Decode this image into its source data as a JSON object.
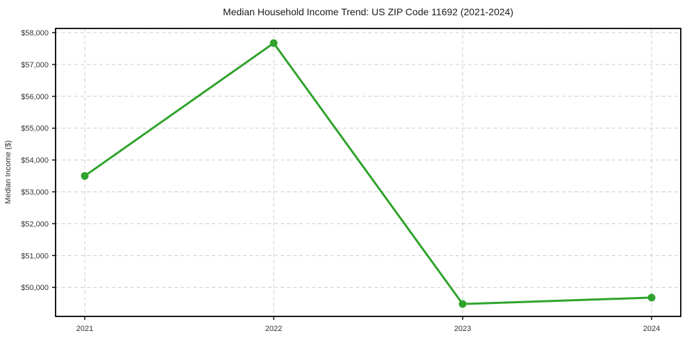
{
  "figure": {
    "background_color": "#ffffff"
  },
  "chart_data": {
    "type": "line",
    "title": "Median Household Income Trend: US ZIP Code 11692 (2021-2024)",
    "xlabel": "",
    "ylabel": "Median Income ($)",
    "categories": [
      "2021",
      "2022",
      "2023",
      "2024"
    ],
    "values": [
      53500,
      57670,
      49480,
      49680
    ],
    "ylim": [
      49090,
      58130
    ],
    "y_ticks": [
      {
        "value": 50000,
        "label": "$50,000"
      },
      {
        "value": 51000,
        "label": "$51,000"
      },
      {
        "value": 52000,
        "label": "$52,000"
      },
      {
        "value": 53000,
        "label": "$53,000"
      },
      {
        "value": 54000,
        "label": "$54,000"
      },
      {
        "value": 55000,
        "label": "$55,000"
      },
      {
        "value": 56000,
        "label": "$56,000"
      },
      {
        "value": 57000,
        "label": "$57,000"
      },
      {
        "value": 58000,
        "label": "$58,000"
      }
    ],
    "grid": true,
    "grid_style": "dashed",
    "legend_position": "none",
    "colors": {
      "line": "#2fa32c",
      "marker": "#2fa32c",
      "grid": "#cccccc",
      "axis": "#000000",
      "tick_label": "#333333",
      "title": "#1a1a1a"
    }
  }
}
